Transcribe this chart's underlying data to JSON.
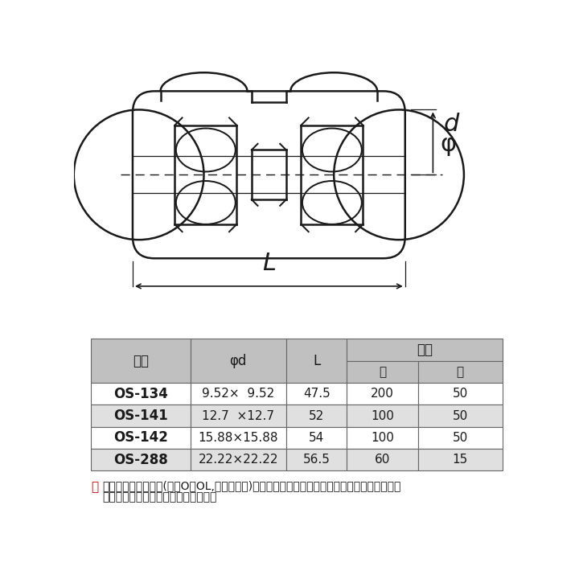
{
  "bg_color": "#ffffff",
  "table_header_bg": "#c0c0c0",
  "table_row_bg1": "#ffffff",
  "table_row_bg2": "#e0e0e0",
  "table_border_color": "#666666",
  "line_color": "#1a1a1a",
  "note_red": "#cc0000",
  "table_data": [
    [
      "OS-134",
      "9.52×  9.52",
      "47.5",
      "200",
      "50"
    ],
    [
      "OS-141",
      "12.7  ×12.7",
      "52",
      "100",
      "50"
    ],
    [
      "OS-142",
      "15.88×15.88",
      "54",
      "100",
      "50"
    ],
    [
      "OS-288",
      "22.22×22.22",
      "56.5",
      "60",
      "15"
    ]
  ],
  "header1_cells": [
    "品番",
    "φd",
    "L",
    "入数",
    "",
    ""
  ],
  "header2_cells": [
    "",
    "",
    "",
    "大",
    "小"
  ],
  "note_line1": "コイル軟質銅管(質別O・OL,なまし銅管)には必ずインサートスリーブを使用して下さい。",
  "note_line2": "上記銅管サイズ表をご確認下さい。",
  "note_prefix": "注"
}
